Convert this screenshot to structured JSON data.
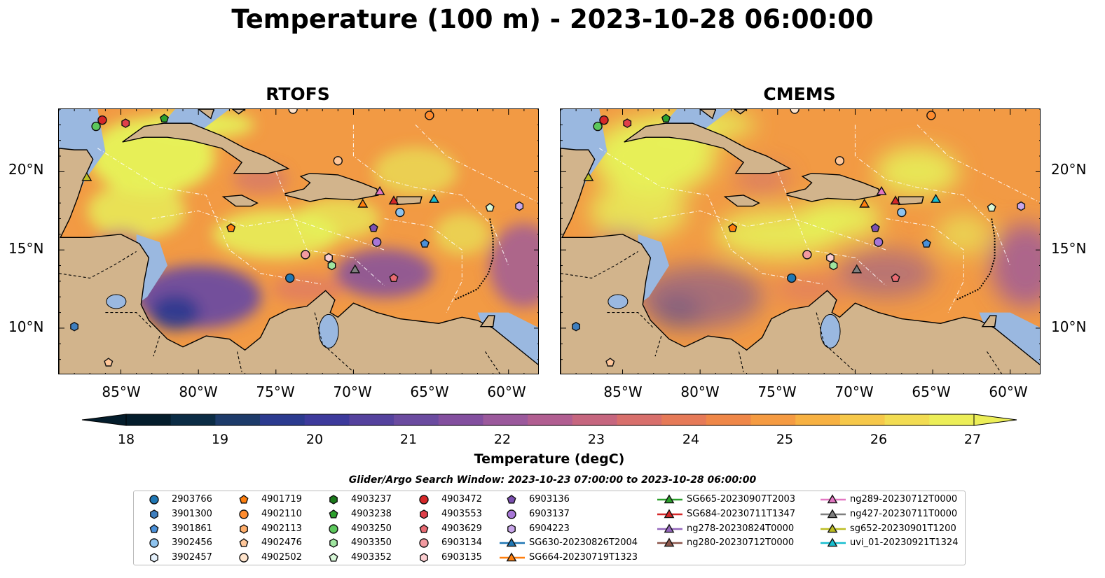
{
  "title": "Temperature (100 m) - 2023-10-28 06:00:00",
  "panels": [
    {
      "title": "RTOFS"
    },
    {
      "title": "CMEMS"
    }
  ],
  "lat_labels": [
    "20°N",
    "15°N",
    "10°N"
  ],
  "lon_labels": [
    "85°W",
    "80°W",
    "75°W",
    "70°W",
    "65°W",
    "60°W"
  ],
  "colorbar": {
    "label": "Temperature (degC)",
    "ticks": [
      "18",
      "19",
      "20",
      "21",
      "22",
      "23",
      "24",
      "25",
      "26",
      "27"
    ],
    "min": 17.5,
    "max": 27,
    "colors": [
      "#041d2c",
      "#0b2c45",
      "#1d3b6a",
      "#2b3a8f",
      "#3d3a9c",
      "#55429e",
      "#6b4ba0",
      "#834f9f",
      "#9b599c",
      "#b15e91",
      "#c6667f",
      "#d86f6c",
      "#e67a58",
      "#ef8748",
      "#f59b42",
      "#f7b142",
      "#f6c84a",
      "#f2dc52",
      "#ecee58"
    ]
  },
  "colors": {
    "land": "#d2b48c",
    "shelf": "#9ab8e0",
    "deep_water": "#0b2233",
    "warm": "#f29a44",
    "hot": "#e6f35a"
  },
  "search_window": "Glider/Argo Search Window: 2023-10-23 07:00:00 to 2023-10-28 06:00:00",
  "legend": [
    {
      "label": "2903766",
      "marker": "circle",
      "color": "#1f77b4"
    },
    {
      "label": "3901300",
      "marker": "hexagon",
      "color": "#3f7fbf"
    },
    {
      "label": "3901861",
      "marker": "pentagon",
      "color": "#4a90d9"
    },
    {
      "label": "3902456",
      "marker": "circle",
      "color": "#8ec3ee"
    },
    {
      "label": "3902457",
      "marker": "hexagon",
      "color": "#e4f0fb"
    },
    {
      "label": "4901719",
      "marker": "pentagon",
      "color": "#ff7f0e"
    },
    {
      "label": "4902110",
      "marker": "circle",
      "color": "#ff8c2e"
    },
    {
      "label": "4902113",
      "marker": "hexagon",
      "color": "#ffae6b"
    },
    {
      "label": "4902476",
      "marker": "pentagon",
      "color": "#ffc79a"
    },
    {
      "label": "4902502",
      "marker": "circle",
      "color": "#ffe4cc"
    },
    {
      "label": "4903237",
      "marker": "hexagon",
      "color": "#1b7a1b"
    },
    {
      "label": "4903238",
      "marker": "pentagon",
      "color": "#2ca02c"
    },
    {
      "label": "4903250",
      "marker": "circle",
      "color": "#5cc85c"
    },
    {
      "label": "4903350",
      "marker": "hexagon",
      "color": "#9fe59f"
    },
    {
      "label": "4903352",
      "marker": "pentagon",
      "color": "#d8f8d8"
    },
    {
      "label": "4903472",
      "marker": "circle",
      "color": "#d62728"
    },
    {
      "label": "4903553",
      "marker": "hexagon",
      "color": "#e0404a"
    },
    {
      "label": "4903629",
      "marker": "pentagon",
      "color": "#e86a72"
    },
    {
      "label": "6903134",
      "marker": "circle",
      "color": "#f29aa0"
    },
    {
      "label": "6903135",
      "marker": "hexagon",
      "color": "#fbcdd0"
    },
    {
      "label": "6903136",
      "marker": "pentagon",
      "color": "#7b4fb0"
    },
    {
      "label": "6903137",
      "marker": "circle",
      "color": "#a776d6"
    },
    {
      "label": "6904223",
      "marker": "hexagon",
      "color": "#c9a6ea"
    },
    {
      "label": "SG630-20230826T2004",
      "marker": "triangle-line",
      "color": "#1f77b4"
    },
    {
      "label": "SG664-20230719T1323",
      "marker": "triangle-line",
      "color": "#ff7f0e"
    },
    {
      "label": "SG665-20230907T2003",
      "marker": "triangle-line",
      "color": "#2ca02c"
    },
    {
      "label": "SG684-20230711T1347",
      "marker": "triangle-line",
      "color": "#d62728"
    },
    {
      "label": "ng278-20230824T0000",
      "marker": "triangle-line",
      "color": "#9467bd"
    },
    {
      "label": "ng280-20230712T0000",
      "marker": "triangle-line",
      "color": "#8c564b"
    },
    {
      "label": "ng289-20230712T0000",
      "marker": "triangle-line",
      "color": "#e377c2"
    },
    {
      "label": "ng427-20230711T0000",
      "marker": "triangle-line",
      "color": "#7f7f7f"
    },
    {
      "label": "sg652-20230901T1200",
      "marker": "triangle-line",
      "color": "#bcbd22"
    },
    {
      "label": "uvi_01-20230921T1324",
      "marker": "triangle-line",
      "color": "#17becf"
    }
  ],
  "stations": [
    {
      "lon": -86.2,
      "lat": 23.3,
      "marker": "circle",
      "color": "#d62728"
    },
    {
      "lon": -86.6,
      "lat": 22.9,
      "marker": "circle",
      "color": "#5cc85c"
    },
    {
      "lon": -84.7,
      "lat": 23.1,
      "marker": "hexagon",
      "color": "#e0404a"
    },
    {
      "lon": -82.2,
      "lat": 23.4,
      "marker": "pentagon",
      "color": "#2ca02c"
    },
    {
      "lon": -73.9,
      "lat": 24.0,
      "marker": "circle",
      "color": "#ffe4cc"
    },
    {
      "lon": -65.1,
      "lat": 23.6,
      "marker": "circle",
      "color": "#ff8c2e"
    },
    {
      "lon": -71.0,
      "lat": 20.7,
      "marker": "circle",
      "color": "#ffc79a"
    },
    {
      "lon": -87.2,
      "lat": 19.6,
      "marker": "triangle",
      "color": "#bcbd22"
    },
    {
      "lon": -77.9,
      "lat": 16.4,
      "marker": "pentagon",
      "color": "#ff7f0e"
    },
    {
      "lon": -68.3,
      "lat": 18.7,
      "marker": "triangle",
      "color": "#e377c2"
    },
    {
      "lon": -67.4,
      "lat": 18.1,
      "marker": "triangle",
      "color": "#d62728"
    },
    {
      "lon": -69.4,
      "lat": 17.9,
      "marker": "triangle",
      "color": "#ff7f0e"
    },
    {
      "lon": -67.0,
      "lat": 17.4,
      "marker": "circle",
      "color": "#8ec3ee"
    },
    {
      "lon": -64.8,
      "lat": 18.2,
      "marker": "triangle",
      "color": "#17becf"
    },
    {
      "lon": -61.2,
      "lat": 17.7,
      "marker": "pentagon",
      "color": "#d8f8d8"
    },
    {
      "lon": -59.3,
      "lat": 17.8,
      "marker": "hexagon",
      "color": "#c9a6ea"
    },
    {
      "lon": -68.7,
      "lat": 16.4,
      "marker": "pentagon",
      "color": "#7b4fb0"
    },
    {
      "lon": -68.5,
      "lat": 15.5,
      "marker": "circle",
      "color": "#a776d6"
    },
    {
      "lon": -65.4,
      "lat": 15.4,
      "marker": "pentagon",
      "color": "#4a90d9"
    },
    {
      "lon": -73.1,
      "lat": 14.7,
      "marker": "circle",
      "color": "#f29aa0"
    },
    {
      "lon": -71.6,
      "lat": 14.5,
      "marker": "hexagon",
      "color": "#fbcdd0"
    },
    {
      "lon": -71.4,
      "lat": 14.0,
      "marker": "hexagon",
      "color": "#9fe59f"
    },
    {
      "lon": -69.9,
      "lat": 13.7,
      "marker": "triangle",
      "color": "#7f7f7f"
    },
    {
      "lon": -74.1,
      "lat": 13.2,
      "marker": "circle",
      "color": "#1f77b4"
    },
    {
      "lon": -67.4,
      "lat": 13.2,
      "marker": "pentagon",
      "color": "#e86a72"
    },
    {
      "lon": -88.0,
      "lat": 10.1,
      "marker": "hexagon",
      "color": "#3f7fbf"
    },
    {
      "lon": -85.8,
      "lat": 7.8,
      "marker": "pentagon",
      "color": "#ffc79a"
    }
  ]
}
